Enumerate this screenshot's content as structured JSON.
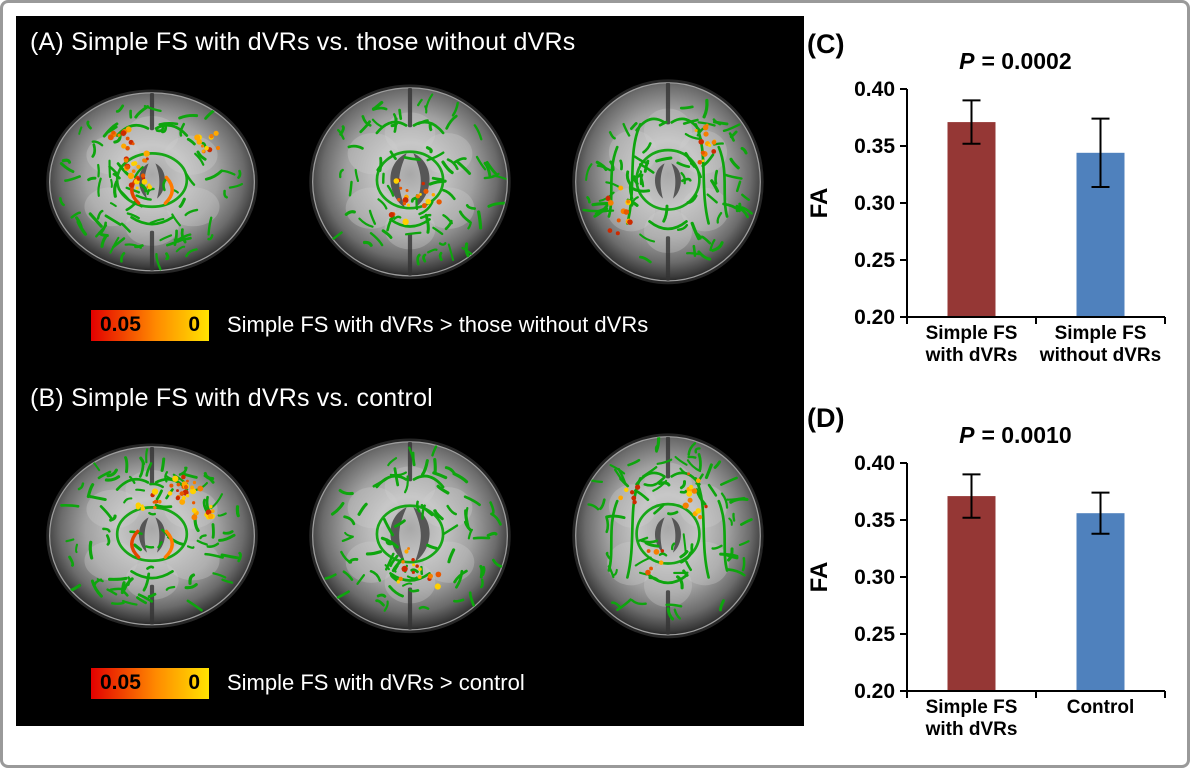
{
  "panel_a": {
    "title": "(A) Simple FS with dVRs vs. those without dVRs",
    "colorbar_left": "0.05",
    "colorbar_right": "0",
    "caption": "Simple FS with dVRs > those without dVRs"
  },
  "panel_b": {
    "title": "(B) Simple FS with dVRs vs. control",
    "colorbar_left": "0.05",
    "colorbar_right": "0",
    "caption": "Simple FS with dVRs > control"
  },
  "chart_data": [
    {
      "type": "bar",
      "panel_label": "(C)",
      "title": "P = 0.0002",
      "ylabel": "FA",
      "ylim": [
        0.2,
        0.4
      ],
      "yticks": [
        0.2,
        0.25,
        0.3,
        0.35,
        0.4
      ],
      "categories": [
        "Simple FS\nwith dVRs",
        "Simple FS\nwithout dVRs"
      ],
      "values": [
        0.371,
        0.344
      ],
      "errors": [
        0.019,
        0.03
      ],
      "bar_colors": [
        "#953735",
        "#4F81BD"
      ],
      "grid": false,
      "legend_position": "none"
    },
    {
      "type": "bar",
      "panel_label": "(D)",
      "title": "P = 0.0010",
      "ylabel": "FA",
      "ylim": [
        0.2,
        0.4
      ],
      "yticks": [
        0.2,
        0.25,
        0.3,
        0.35,
        0.4
      ],
      "categories": [
        "Simple FS\nwith dVRs",
        "Control"
      ],
      "values": [
        0.371,
        0.356
      ],
      "errors": [
        0.019,
        0.018
      ],
      "bar_colors": [
        "#953735",
        "#4F81BD"
      ],
      "grid": false,
      "legend_position": "none"
    }
  ],
  "style": {
    "skeleton_green": "#0EA50E",
    "cluster_colors": [
      "#cc2a00",
      "#e85800",
      "#f57f00",
      "#ffa800",
      "#ffd000"
    ],
    "colorbar_gradient": [
      "#e30000",
      "#ff8a00",
      "#ffe400"
    ],
    "bar_red": "#953735",
    "bar_blue": "#4F81BD"
  }
}
